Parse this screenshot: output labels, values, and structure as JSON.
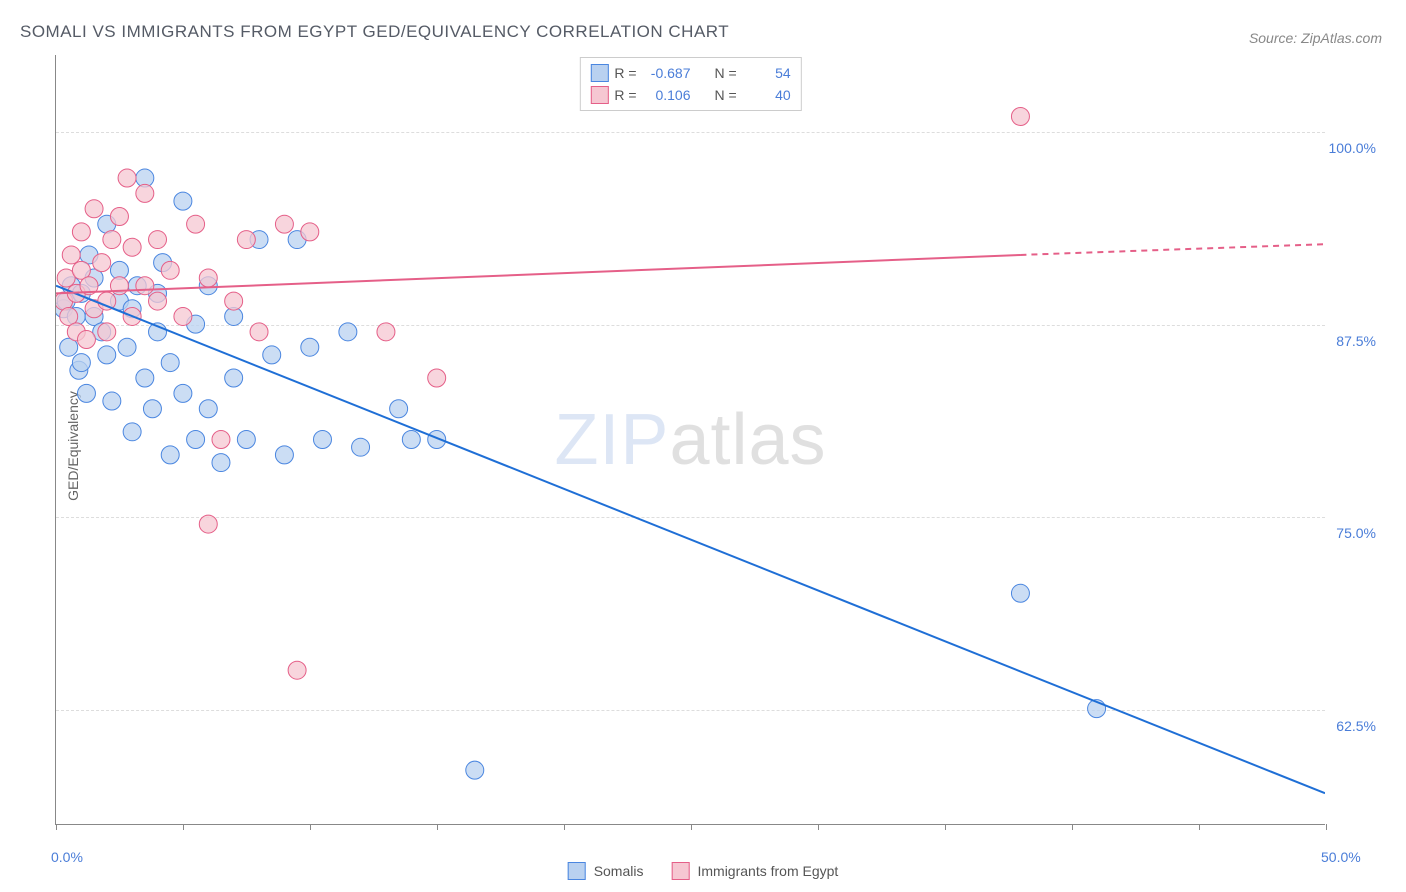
{
  "title": "SOMALI VS IMMIGRANTS FROM EGYPT GED/EQUIVALENCY CORRELATION CHART",
  "source": "Source: ZipAtlas.com",
  "ylabel": "GED/Equivalency",
  "watermark": {
    "part1": "ZIP",
    "part2": "atlas"
  },
  "chart": {
    "type": "scatter-with-regression",
    "background_color": "#ffffff",
    "grid_color": "#dddddd",
    "axis_color": "#888888",
    "tick_label_color": "#4a7dd8",
    "xlim": [
      0,
      50
    ],
    "ylim": [
      55,
      105
    ],
    "xtick_labels": [
      {
        "v": 0,
        "label": "0.0%"
      },
      {
        "v": 50,
        "label": "50.0%"
      }
    ],
    "xtick_positions": [
      0,
      5,
      10,
      15,
      20,
      25,
      30,
      35,
      40,
      45,
      50
    ],
    "ytick_labels": [
      {
        "v": 62.5,
        "label": "62.5%"
      },
      {
        "v": 75.0,
        "label": "75.0%"
      },
      {
        "v": 87.5,
        "label": "87.5%"
      },
      {
        "v": 100.0,
        "label": "100.0%"
      }
    ],
    "grid_y": [
      62.5,
      75.0,
      87.5,
      100.0
    ]
  },
  "series": [
    {
      "name": "Somalis",
      "color_fill": "#b9d1f0",
      "color_stroke": "#4a86e0",
      "marker_radius": 9,
      "marker_opacity": 0.75,
      "R": "-0.687",
      "N": "54",
      "regression": {
        "x0": 0,
        "y0": 90.0,
        "x1": 50,
        "y1": 57.0,
        "color": "#1f6fd6",
        "width": 2
      },
      "points": [
        [
          0.3,
          88.5
        ],
        [
          0.4,
          89.0
        ],
        [
          0.5,
          86.0
        ],
        [
          0.6,
          90.0
        ],
        [
          0.8,
          88.0
        ],
        [
          0.9,
          84.5
        ],
        [
          1.0,
          89.5
        ],
        [
          1.0,
          85.0
        ],
        [
          1.2,
          83.0
        ],
        [
          1.3,
          92.0
        ],
        [
          1.5,
          88.0
        ],
        [
          1.5,
          90.5
        ],
        [
          1.8,
          87.0
        ],
        [
          2.0,
          94.0
        ],
        [
          2.0,
          85.5
        ],
        [
          2.2,
          82.5
        ],
        [
          2.5,
          89.0
        ],
        [
          2.5,
          91.0
        ],
        [
          2.8,
          86.0
        ],
        [
          3.0,
          80.5
        ],
        [
          3.0,
          88.5
        ],
        [
          3.2,
          90.0
        ],
        [
          3.5,
          84.0
        ],
        [
          3.5,
          97.0
        ],
        [
          3.8,
          82.0
        ],
        [
          4.0,
          87.0
        ],
        [
          4.0,
          89.5
        ],
        [
          4.2,
          91.5
        ],
        [
          4.5,
          85.0
        ],
        [
          4.5,
          79.0
        ],
        [
          5.0,
          83.0
        ],
        [
          5.0,
          95.5
        ],
        [
          5.5,
          80.0
        ],
        [
          5.5,
          87.5
        ],
        [
          6.0,
          82.0
        ],
        [
          6.0,
          90.0
        ],
        [
          6.5,
          78.5
        ],
        [
          7.0,
          88.0
        ],
        [
          7.0,
          84.0
        ],
        [
          7.5,
          80.0
        ],
        [
          8.0,
          93.0
        ],
        [
          8.5,
          85.5
        ],
        [
          9.0,
          79.0
        ],
        [
          9.5,
          93.0
        ],
        [
          10.0,
          86.0
        ],
        [
          10.5,
          80.0
        ],
        [
          11.5,
          87.0
        ],
        [
          12.0,
          79.5
        ],
        [
          13.5,
          82.0
        ],
        [
          14.0,
          80.0
        ],
        [
          15.0,
          80.0
        ],
        [
          16.5,
          58.5
        ],
        [
          38.0,
          70.0
        ],
        [
          41.0,
          62.5
        ]
      ]
    },
    {
      "name": "Immigrants from Egypt",
      "color_fill": "#f6c7d2",
      "color_stroke": "#e55f88",
      "marker_radius": 9,
      "marker_opacity": 0.75,
      "R": "0.106",
      "N": "40",
      "regression": {
        "x0": 0,
        "y0": 89.5,
        "x1": 38,
        "y1": 92.0,
        "dash_x1": 50,
        "dash_y1": 92.7,
        "color": "#e55f88",
        "width": 2
      },
      "points": [
        [
          0.3,
          89.0
        ],
        [
          0.4,
          90.5
        ],
        [
          0.5,
          88.0
        ],
        [
          0.6,
          92.0
        ],
        [
          0.8,
          87.0
        ],
        [
          0.8,
          89.5
        ],
        [
          1.0,
          91.0
        ],
        [
          1.0,
          93.5
        ],
        [
          1.2,
          86.5
        ],
        [
          1.3,
          90.0
        ],
        [
          1.5,
          88.5
        ],
        [
          1.5,
          95.0
        ],
        [
          1.8,
          91.5
        ],
        [
          2.0,
          89.0
        ],
        [
          2.0,
          87.0
        ],
        [
          2.2,
          93.0
        ],
        [
          2.5,
          90.0
        ],
        [
          2.5,
          94.5
        ],
        [
          2.8,
          97.0
        ],
        [
          3.0,
          88.0
        ],
        [
          3.0,
          92.5
        ],
        [
          3.5,
          90.0
        ],
        [
          3.5,
          96.0
        ],
        [
          4.0,
          93.0
        ],
        [
          4.0,
          89.0
        ],
        [
          4.5,
          91.0
        ],
        [
          5.0,
          88.0
        ],
        [
          5.5,
          94.0
        ],
        [
          6.0,
          90.5
        ],
        [
          6.5,
          80.0
        ],
        [
          7.0,
          89.0
        ],
        [
          7.5,
          93.0
        ],
        [
          8.0,
          87.0
        ],
        [
          9.0,
          94.0
        ],
        [
          9.5,
          65.0
        ],
        [
          10.0,
          93.5
        ],
        [
          13.0,
          87.0
        ],
        [
          15.0,
          84.0
        ],
        [
          38.0,
          101.0
        ],
        [
          6.0,
          74.5
        ]
      ]
    }
  ],
  "legend_top": {
    "rows": [
      {
        "series_idx": 0,
        "R_label": "R =",
        "N_label": "N ="
      },
      {
        "series_idx": 1,
        "R_label": "R =",
        "N_label": "N ="
      }
    ]
  },
  "legend_bottom": [
    {
      "series_idx": 0
    },
    {
      "series_idx": 1
    }
  ]
}
